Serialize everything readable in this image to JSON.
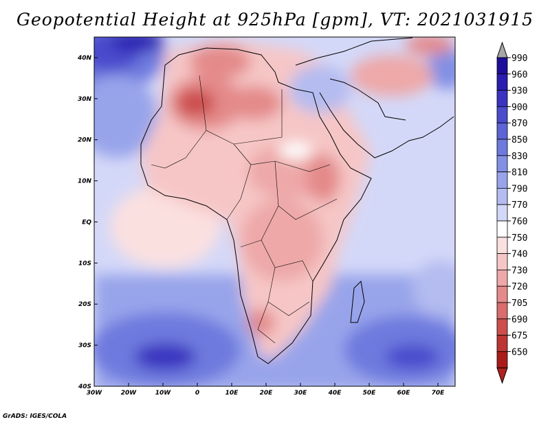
{
  "title": "Geopotential Height at 925hPa [gpm], VT: 2021031915",
  "variable": "Geopotential Height",
  "level": "925hPa",
  "units": "gpm",
  "valid_time": "2021031915",
  "region": "Africa",
  "lon_range": [
    -30,
    75
  ],
  "lat_range": [
    -40,
    45
  ],
  "lat_labels": [
    "40N",
    "30N",
    "20N",
    "10N",
    "EQ",
    "10S",
    "20S",
    "30S",
    "40S"
  ],
  "lat_values": [
    40,
    30,
    20,
    10,
    0,
    -10,
    -20,
    -30,
    -40
  ],
  "lon_labels": [
    "30W",
    "20W",
    "10W",
    "0",
    "10E",
    "20E",
    "30E",
    "40E",
    "50E",
    "60E",
    "70E"
  ],
  "lon_values": [
    -30,
    -20,
    -10,
    0,
    10,
    20,
    30,
    40,
    50,
    60,
    70
  ],
  "colorbar": {
    "levels": [
      "990",
      "960",
      "930",
      "900",
      "870",
      "850",
      "830",
      "810",
      "790",
      "770",
      "760",
      "750",
      "740",
      "730",
      "720",
      "705",
      "690",
      "675",
      "650"
    ],
    "colors": [
      "#1e0e9a",
      "#2a1eb0",
      "#3a34c0",
      "#4a4ccc",
      "#5c64d6",
      "#6e7ade",
      "#8290e4",
      "#98a4ea",
      "#b4bcf0",
      "#d4d8f8",
      "#ffffff",
      "#fbe0e0",
      "#f6c6c6",
      "#eea8a8",
      "#e48a8a",
      "#d96c6c",
      "#cc4e4e",
      "#bd3434",
      "#aa1c1c"
    ],
    "over_color": "#a6a6a6",
    "under_color": "#b02020"
  },
  "credit": "GrADS: IGES/COLA"
}
